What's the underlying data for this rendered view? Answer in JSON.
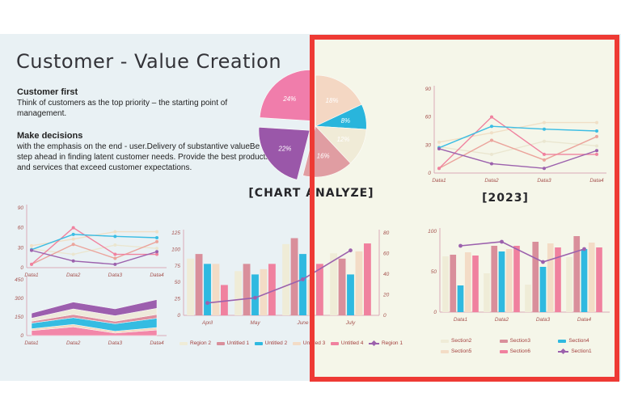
{
  "page": {
    "title": "Customer - Value Creation",
    "sections": [
      {
        "heading": "Customer first",
        "body": "Think of customers as the top priority   – the starting point of management."
      },
      {
        "heading": "Make decisions",
        "body": "with the emphasis on the end - user.Delivery  of substantive valueBe  one step ahead in finding latent customer needs. Provide the best products and services that exceed customer expectations."
      }
    ],
    "captions": {
      "pie": "[CHART ANALYZE]",
      "year": "[2023]"
    },
    "highlight_color": "#ee3a34",
    "slide_bg": "#e9f1f4",
    "highlight_bg": "#f5f6e9"
  },
  "chart_data": [
    {
      "id": "pie",
      "type": "pie",
      "title": "[CHART ANALYZE]",
      "labels": [
        "18%",
        "8%",
        "12%",
        "16%",
        "22%",
        "24%"
      ],
      "values": [
        18,
        8,
        12,
        16,
        22,
        24
      ],
      "colors": [
        "#f4d7c3",
        "#29b5dc",
        "#f0ebd7",
        "#e09da2",
        "#9a57a9",
        "#f07dab"
      ],
      "exploded": [
        false,
        false,
        false,
        false,
        true,
        true
      ]
    },
    {
      "id": "line-data",
      "type": "line",
      "title": "[2023]",
      "categories": [
        "Data1",
        "Data2",
        "Data3",
        "Data4"
      ],
      "ylim": [
        0,
        90
      ],
      "yticks": [
        0,
        30,
        60,
        90
      ],
      "grid": false,
      "legend": "none",
      "series": [
        {
          "name": "beige-light",
          "color": "#f0dfc6",
          "values": [
            33,
            43,
            54,
            54
          ]
        },
        {
          "name": "beige-pale",
          "color": "#eae6d0",
          "values": [
            28,
            20,
            34,
            29
          ]
        },
        {
          "name": "salmon",
          "color": "#eba49c",
          "values": [
            5,
            35,
            14,
            39
          ]
        },
        {
          "name": "pink",
          "color": "#f0829f",
          "values": [
            5,
            60,
            20,
            20
          ]
        },
        {
          "name": "cyan",
          "color": "#3bbde4",
          "values": [
            27,
            50,
            47,
            45
          ]
        },
        {
          "name": "purple",
          "color": "#9c61ad",
          "values": [
            26,
            10,
            5,
            24
          ]
        }
      ]
    },
    {
      "id": "area",
      "type": "area",
      "categories": [
        "Data1",
        "Data2",
        "Data3",
        "Data4"
      ],
      "ylim": [
        0,
        450
      ],
      "yticks": [
        0,
        150,
        300,
        450
      ],
      "stacked": true,
      "series": [
        {
          "name": "pink",
          "color": "#f287a9",
          "values": [
            40,
            70,
            20,
            45
          ]
        },
        {
          "name": "peach",
          "color": "#f2d8c0",
          "values": [
            15,
            20,
            15,
            20
          ]
        },
        {
          "name": "cyan",
          "color": "#35bce2",
          "values": [
            45,
            55,
            60,
            75
          ]
        },
        {
          "name": "rose",
          "color": "#dd8f9f",
          "values": [
            15,
            25,
            20,
            30
          ]
        },
        {
          "name": "cream",
          "color": "#eeeadb",
          "values": [
            25,
            45,
            45,
            50
          ]
        },
        {
          "name": "purple",
          "color": "#9c5fae",
          "values": [
            40,
            55,
            55,
            70
          ]
        }
      ]
    },
    {
      "id": "bar-months",
      "type": "bar",
      "categories": [
        "April",
        "May",
        "June",
        "July"
      ],
      "ylim": [
        0,
        125
      ],
      "yticks": [
        0,
        25,
        50,
        75,
        100,
        125
      ],
      "right_axis": true,
      "right_ticks": [
        0,
        20,
        40,
        60,
        80
      ],
      "right_ylim": [
        0,
        80
      ],
      "series": [
        {
          "name": "Region 2",
          "color": "#efecd7",
          "values": [
            86,
            67,
            108,
            94
          ]
        },
        {
          "name": "Untitled 1",
          "color": "#d98f9b",
          "values": [
            93,
            78,
            117,
            86
          ]
        },
        {
          "name": "Untitled 2",
          "color": "#2fb9e0",
          "values": [
            78,
            62,
            93,
            62
          ]
        },
        {
          "name": "Untitled 3",
          "color": "#f3dcc6",
          "values": [
            78,
            70,
            54,
            97
          ]
        },
        {
          "name": "Untitled 4",
          "color": "#f0819f",
          "values": [
            46,
            78,
            78,
            109
          ]
        }
      ],
      "line": {
        "name": "Region 1",
        "color": "#9c61ad",
        "axis": "right",
        "values": [
          12,
          17,
          35,
          63
        ]
      },
      "legend": [
        {
          "label": "Region 2",
          "color": "#efecd7",
          "marker": "bar"
        },
        {
          "label": "Untitled 1",
          "color": "#d98f9b",
          "marker": "bar"
        },
        {
          "label": "Untitled 2",
          "color": "#2fb9e0",
          "marker": "bar"
        },
        {
          "label": "Untitled 3",
          "color": "#f3dcc6",
          "marker": "bar"
        },
        {
          "label": "Untitled 4",
          "color": "#f0819f",
          "marker": "bar"
        },
        {
          "label": "Region 1",
          "color": "#9c61ad",
          "marker": "line"
        }
      ]
    },
    {
      "id": "bar-sections",
      "type": "bar",
      "categories": [
        "Data1",
        "Data2",
        "Data3",
        "Data4"
      ],
      "ylim": [
        0,
        100
      ],
      "yticks": [
        0,
        50,
        100
      ],
      "right_axis": false,
      "series": [
        {
          "name": "Section2",
          "color": "#efecd7",
          "values": [
            69,
            48,
            34,
            68
          ]
        },
        {
          "name": "Section3",
          "color": "#d98f9b",
          "values": [
            71,
            82,
            87,
            94
          ]
        },
        {
          "name": "Section4",
          "color": "#2fb9e0",
          "values": [
            33,
            75,
            56,
            78
          ]
        },
        {
          "name": "Section5",
          "color": "#f3dcc6",
          "values": [
            74,
            78,
            85,
            86
          ]
        },
        {
          "name": "Section6",
          "color": "#f0819f",
          "values": [
            70,
            82,
            80,
            80
          ]
        }
      ],
      "line": {
        "name": "Section1",
        "color": "#9c61ad",
        "axis": "left",
        "values": [
          82,
          87,
          62,
          78
        ]
      },
      "legend": [
        {
          "label": "Section2",
          "color": "#efecd7",
          "marker": "bar"
        },
        {
          "label": "Section3",
          "color": "#d98f9b",
          "marker": "bar"
        },
        {
          "label": "Section4",
          "color": "#2fb9e0",
          "marker": "bar"
        },
        {
          "label": "Section5",
          "color": "#f3dcc6",
          "marker": "bar"
        },
        {
          "label": "Section6",
          "color": "#f0819f",
          "marker": "bar"
        },
        {
          "label": "Section1",
          "color": "#9c61ad",
          "marker": "line"
        }
      ]
    }
  ]
}
